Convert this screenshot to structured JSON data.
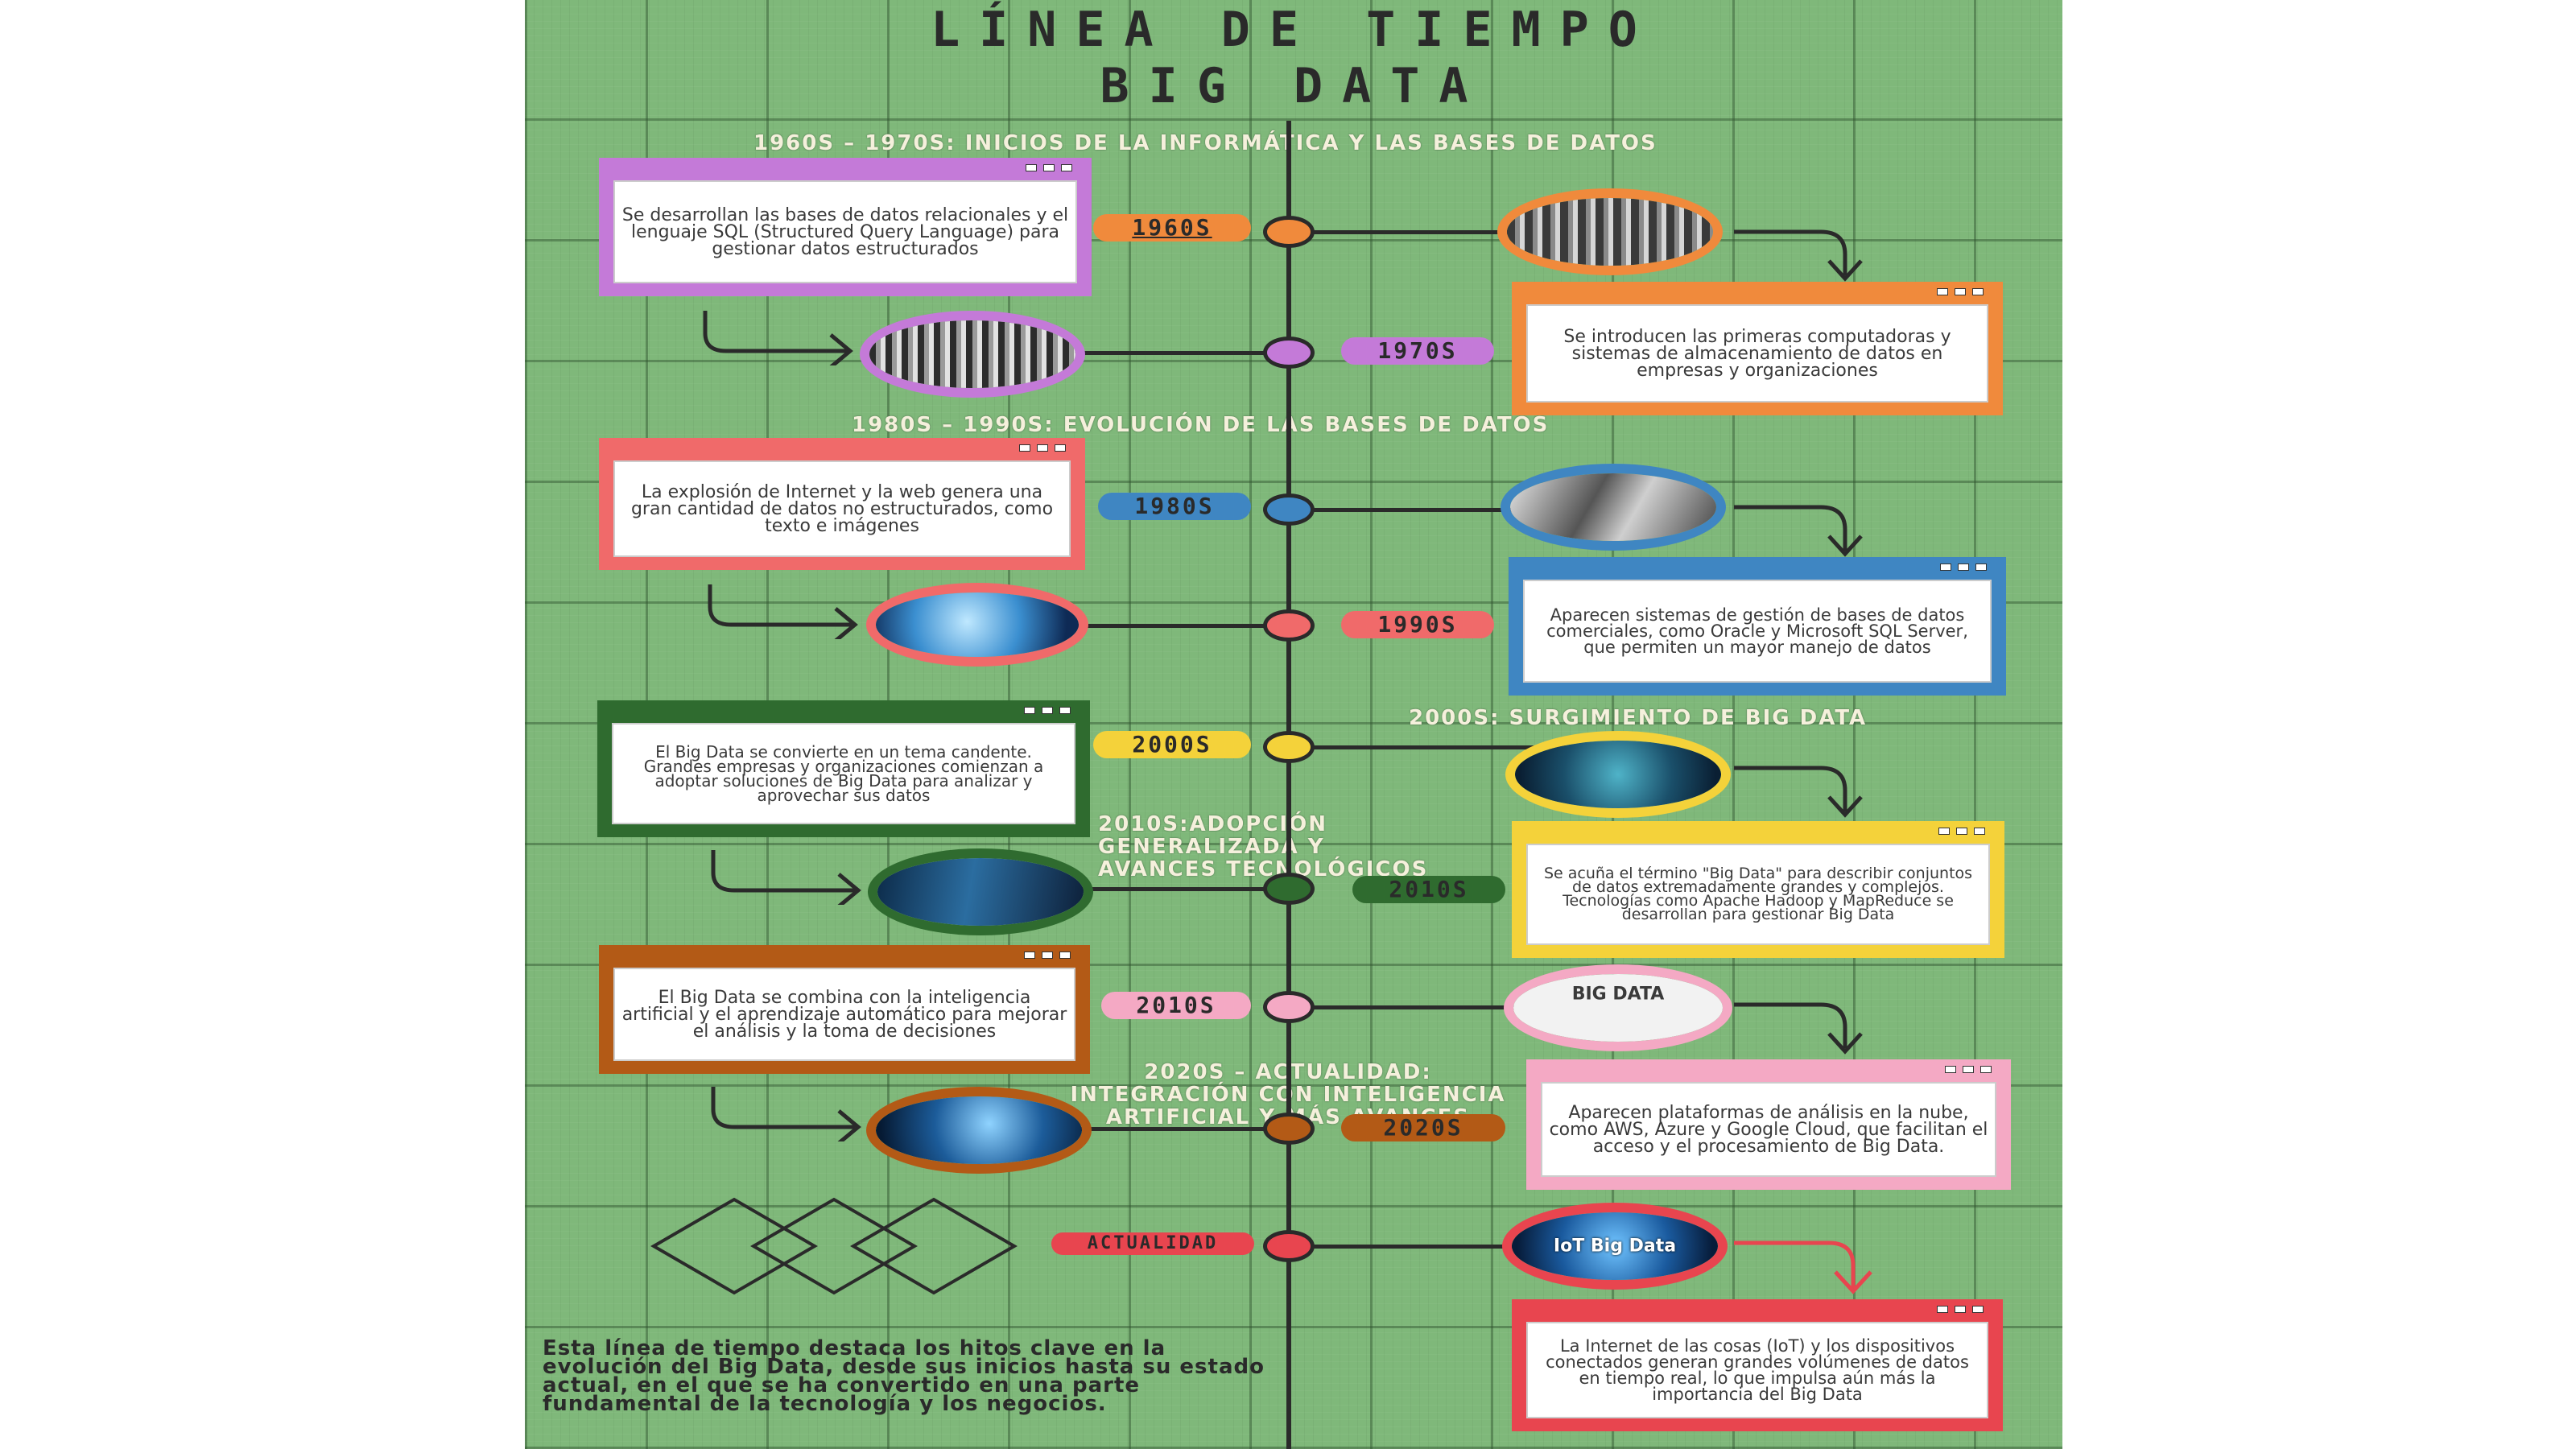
{
  "title": {
    "line1": "LÍNEA DE TIEMPO",
    "line2": "BIG DATA"
  },
  "sections": {
    "s1960": "1960S – 1970S: INICIOS DE LA INFORMÁTICA Y LAS BASES DE DATOS",
    "s1980": "1980S – 1990S: EVOLUCIÓN DE LAS BASES DE DATOS",
    "s2000": "2000S: SURGIMIENTO DE BIG DATA",
    "s2010": [
      "2010S:ADOPCIÓN",
      "GENERALIZADA Y",
      "AVANCES TECNOLÓGICOS"
    ],
    "s2020": [
      "2020S – ACTUALIDAD:",
      "INTEGRACIÓN CON INTELIGENCIA",
      "ARTIFICIAL Y MÁS AVANCES"
    ]
  },
  "tags": {
    "t1960": "1960S",
    "t1970": "1970S",
    "t1980": "1980S",
    "t1990": "1990S",
    "t2000": "2000S",
    "t2010a": "2010S",
    "t2010b": "2010S",
    "t2020": "2020S",
    "tnow": "ACTUALIDAD"
  },
  "cards": {
    "c1960": "Se desarrollan las bases de datos relacionales y el lenguaje SQL (Structured Query Language) para gestionar datos estructurados",
    "c1970": "Se introducen las primeras computadoras y sistemas de almacenamiento de datos en empresas y organizaciones",
    "c1980": "La explosión de Internet y la web genera una gran cantidad de datos no estructurados, como texto e imágenes",
    "c1990": "Aparecen sistemas de gestión de bases de datos comerciales, como Oracle y Microsoft SQL Server, que permiten un mayor manejo de datos",
    "c2000": "El Big Data se convierte en un tema candente. Grandes empresas y organizaciones comienzan a adoptar soluciones de Big Data para analizar y aprovechar sus datos",
    "c2010a": "Se acuña el término \"Big Data\" para describir conjuntos de datos extremadamente grandes y complejos. Tecnologías como Apache Hadoop y MapReduce se desarrollan para gestionar Big Data",
    "c2010b": "El Big Data se combina con la inteligencia artificial y el aprendizaje automático para mejorar el análisis y la toma de decisiones",
    "c2020": "Aparecen plataformas de análisis en la nube, como AWS, Azure y Google Cloud, que facilitan el acceso y el procesamiento de Big Data.",
    "cnow": "La Internet de las cosas (IoT) y los dispositivos conectados generan grandes volúmenes de datos en tiempo real, lo que impulsa aún más la importancia del Big Data"
  },
  "photos": {
    "p2010b": "BIG DATA",
    "pnow": "IoT Big Data"
  },
  "footer": "Esta línea de tiempo destaca los hitos clave en la evolución del Big Data, desde sus inicios hasta su estado actual, en el que se ha convertido en una parte fundamental de la tecnología y los negocios.",
  "colors": {
    "background": "#7fb87a",
    "purple": "#c47ad8",
    "orange": "#f08a3c",
    "blue": "#3f86c2",
    "coral": "#f06a6a",
    "yellow": "#f4d23a",
    "green": "#2f6b2f",
    "pink": "#f4a9c4",
    "brown": "#b35a16",
    "red": "#e8454f"
  }
}
